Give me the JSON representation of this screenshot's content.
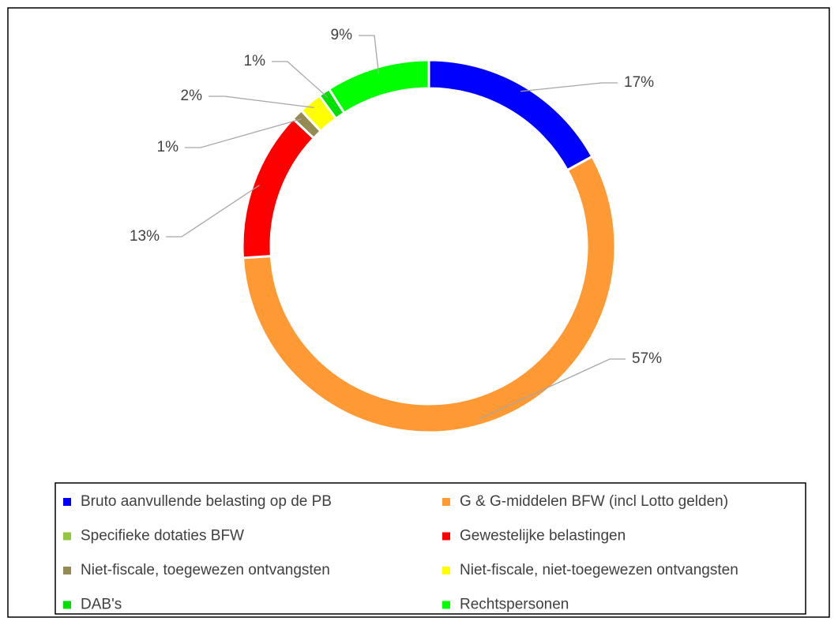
{
  "chart_data": {
    "type": "donut",
    "categories": [
      "Bruto aanvullende belasting op de PB",
      "G & G-middelen BFW (incl Lotto gelden)",
      "Specifieke dotaties BFW",
      "Gewestelijke belastingen",
      "Niet-fiscale, toegewezen ontvangsten",
      "Niet-fiscale, niet-toegewezen ontvangsten",
      "DAB's",
      "Rechtspersonen"
    ],
    "values": [
      17,
      57,
      0,
      13,
      1,
      2,
      1,
      9
    ],
    "value_labels": [
      "17%",
      "57%",
      null,
      "13%",
      "1%",
      "2%",
      "1%",
      "9%"
    ],
    "colors": [
      "#0000ff",
      "#ff9933",
      "#92c83e",
      "#ff0000",
      "#948a54",
      "#ffff00",
      "#00e000",
      "#00ff00"
    ],
    "legend": "bottom"
  }
}
